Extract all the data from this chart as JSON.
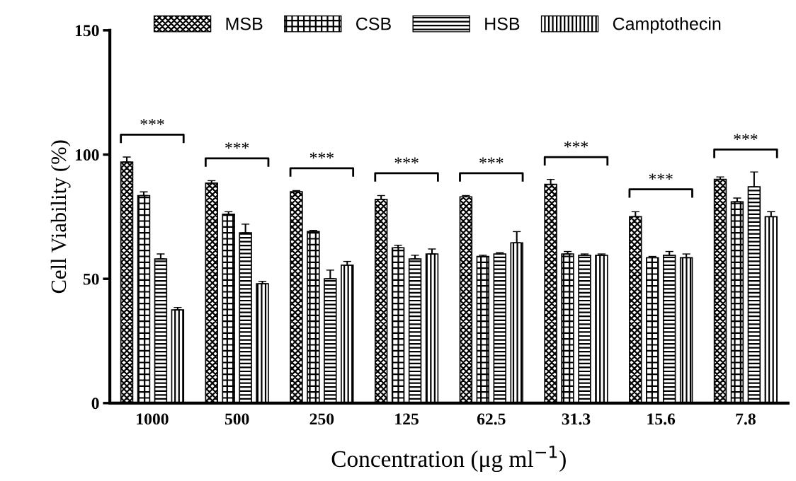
{
  "chart_data": {
    "type": "bar",
    "ylabel": "Cell Viability (%)",
    "xlabel": "Concentration (μg ml$^{−1}$)",
    "categories": [
      "1000",
      "500",
      "250",
      "125",
      "62.5",
      "31.3",
      "15.6",
      "7.8"
    ],
    "series": [
      {
        "name": "MSB",
        "color": "#000000",
        "values": [
          97,
          88.5,
          85,
          82,
          83,
          88,
          75,
          90
        ],
        "errors": [
          2,
          1,
          0.5,
          1.5,
          0.5,
          2,
          2,
          1
        ]
      },
      {
        "name": "CSB",
        "color": "#000000",
        "values": [
          83.5,
          76,
          69,
          62.5,
          59,
          60,
          58.5,
          81
        ],
        "errors": [
          1.5,
          1,
          0.5,
          1,
          0.5,
          1,
          0.5,
          1.5
        ]
      },
      {
        "name": "HSB",
        "color": "#000000",
        "values": [
          58,
          68.5,
          50,
          58,
          60,
          59.5,
          59.5,
          87
        ],
        "errors": [
          2,
          3.5,
          3.5,
          1.5,
          0.5,
          0.5,
          1.5,
          6
        ]
      },
      {
        "name": "Camptothecin",
        "color": "#000000",
        "values": [
          37.5,
          48,
          55.5,
          60,
          64.5,
          59.5,
          58.5,
          75
        ],
        "errors": [
          1,
          1,
          1.5,
          2,
          4.5,
          0.5,
          1.5,
          2
        ]
      }
    ],
    "ylim": [
      0,
      150
    ],
    "yticks": [
      0,
      50,
      100,
      150
    ],
    "grid": false,
    "legend": "top",
    "annotations": [
      "***",
      "***",
      "***",
      "***",
      "***",
      "***",
      "***",
      "***"
    ]
  }
}
